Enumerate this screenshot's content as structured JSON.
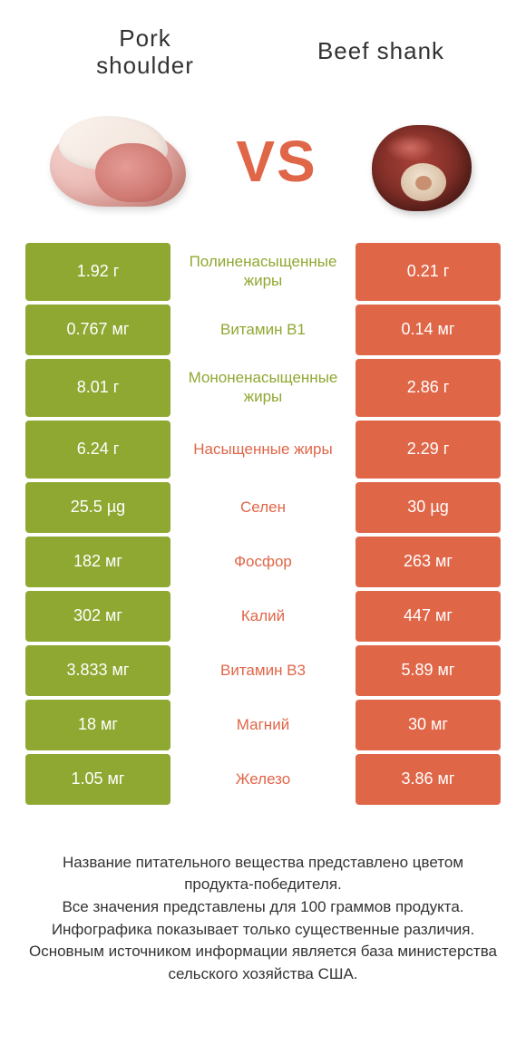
{
  "colors": {
    "green": "#8fa832",
    "orange": "#e06648",
    "text": "#333333",
    "bg": "#ffffff"
  },
  "header": {
    "left_title": "Pork\nshoulder",
    "right_title": "Beef shank",
    "vs": "VS"
  },
  "rows": [
    {
      "left": "1.92 г",
      "mid": "Полиненасыщенные жиры",
      "winner": "green",
      "right": "0.21 г",
      "tall": true
    },
    {
      "left": "0.767 мг",
      "mid": "Витамин B1",
      "winner": "green",
      "right": "0.14 мг"
    },
    {
      "left": "8.01 г",
      "mid": "Мононенасыщенные жиры",
      "winner": "green",
      "right": "2.86 г",
      "tall": true
    },
    {
      "left": "6.24 г",
      "mid": "Насыщенные жиры",
      "winner": "orange",
      "right": "2.29 г",
      "tall": true
    },
    {
      "left": "25.5 µg",
      "mid": "Селен",
      "winner": "orange",
      "right": "30 µg"
    },
    {
      "left": "182 мг",
      "mid": "Фосфор",
      "winner": "orange",
      "right": "263 мг"
    },
    {
      "left": "302 мг",
      "mid": "Калий",
      "winner": "orange",
      "right": "447 мг"
    },
    {
      "left": "3.833 мг",
      "mid": "Витамин B3",
      "winner": "orange",
      "right": "5.89 мг"
    },
    {
      "left": "18 мг",
      "mid": "Магний",
      "winner": "orange",
      "right": "30 мг"
    },
    {
      "left": "1.05 мг",
      "mid": "Железо",
      "winner": "orange",
      "right": "3.86 мг"
    }
  ],
  "footer": {
    "line1": "Название питательного вещества представлено цветом продукта-победителя.",
    "line2": "Все значения представлены для 100 граммов продукта.",
    "line3": "Инфографика показывает только существенные различия.",
    "line4": "Основным источником информации является база министерства сельского хозяйства США."
  }
}
